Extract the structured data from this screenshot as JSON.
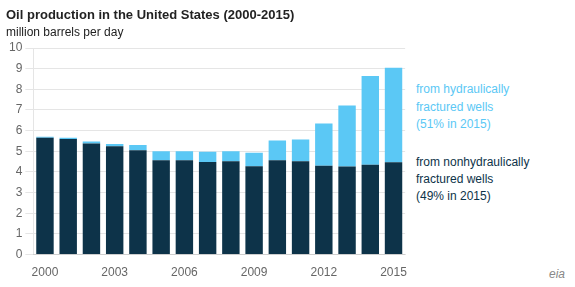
{
  "chart_data": {
    "type": "bar",
    "title": "Oil production in the United States (2000-2015)",
    "subtitle": "million barrels per day",
    "categories": [
      "2000",
      null,
      null,
      "2003",
      null,
      null,
      "2006",
      null,
      null,
      "2009",
      null,
      null,
      "2012",
      null,
      null,
      "2015"
    ],
    "series": [
      {
        "name": "from nonhydraulically\nfractured wells\n(49% in 2015)",
        "color": "#0d3349",
        "values": [
          5.65,
          5.6,
          5.38,
          5.25,
          5.05,
          4.57,
          4.57,
          4.48,
          4.52,
          4.28,
          4.57,
          4.52,
          4.3,
          4.27,
          4.35,
          4.47
        ]
      },
      {
        "name": "from hydraulically\nfractured wells\n(51% in 2015)",
        "color": "#5bc8f5",
        "values": [
          0.05,
          0.05,
          0.1,
          0.1,
          0.25,
          0.43,
          0.43,
          0.5,
          0.48,
          0.65,
          0.95,
          1.05,
          2.05,
          2.95,
          4.3,
          4.58
        ]
      }
    ],
    "stacked": true,
    "ylim": [
      0,
      10
    ],
    "yticks": [
      0,
      1,
      2,
      3,
      4,
      5,
      6,
      7,
      8,
      9,
      10
    ],
    "grid": true,
    "legend": "right",
    "annotations": [
      "eia"
    ]
  }
}
